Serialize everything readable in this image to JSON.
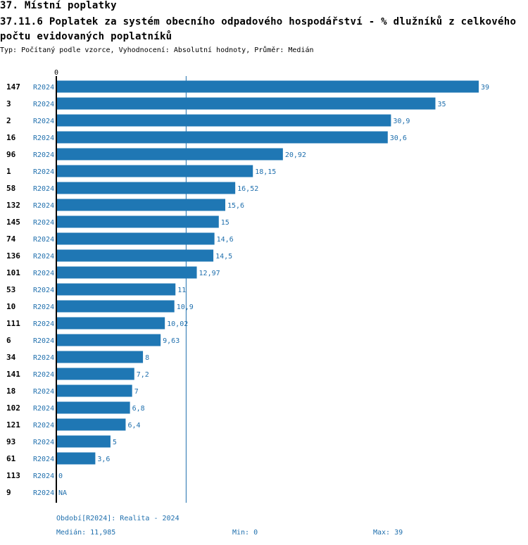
{
  "section_title": "37. Místní poplatky",
  "chart_title": "37.11.6 Poplatek za systém obecního odpadového hospodářství  - % dlužníků z celkového počtu evidovaných poplatníků",
  "subtitle": "Typ: Počítaný podle vzorce, Vyhodnocení: Absolutní hodnoty, Průměr: Medián",
  "colors": {
    "bar": "#1f77b4",
    "label": "#1f6fad",
    "median_line": "#1f6fad",
    "axis": "#000000"
  },
  "chart_data": {
    "type": "bar",
    "orientation": "horizontal",
    "x_axis_start_label": "0",
    "xlim": [
      0,
      39
    ],
    "grid": false,
    "rows": [
      {
        "id": "147",
        "period": "R2024",
        "value": 39,
        "label": "39"
      },
      {
        "id": "3",
        "period": "R2024",
        "value": 35,
        "label": "35"
      },
      {
        "id": "2",
        "period": "R2024",
        "value": 30.9,
        "label": "30,9"
      },
      {
        "id": "16",
        "period": "R2024",
        "value": 30.6,
        "label": "30,6"
      },
      {
        "id": "96",
        "period": "R2024",
        "value": 20.92,
        "label": "20,92"
      },
      {
        "id": "1",
        "period": "R2024",
        "value": 18.15,
        "label": "18,15"
      },
      {
        "id": "58",
        "period": "R2024",
        "value": 16.52,
        "label": "16,52"
      },
      {
        "id": "132",
        "period": "R2024",
        "value": 15.6,
        "label": "15,6"
      },
      {
        "id": "145",
        "period": "R2024",
        "value": 15,
        "label": "15"
      },
      {
        "id": "74",
        "period": "R2024",
        "value": 14.6,
        "label": "14,6"
      },
      {
        "id": "136",
        "period": "R2024",
        "value": 14.5,
        "label": "14,5"
      },
      {
        "id": "101",
        "period": "R2024",
        "value": 12.97,
        "label": "12,97"
      },
      {
        "id": "53",
        "period": "R2024",
        "value": 11,
        "label": "11"
      },
      {
        "id": "10",
        "period": "R2024",
        "value": 10.9,
        "label": "10,9"
      },
      {
        "id": "111",
        "period": "R2024",
        "value": 10.02,
        "label": "10,02"
      },
      {
        "id": "6",
        "period": "R2024",
        "value": 9.63,
        "label": "9,63"
      },
      {
        "id": "34",
        "period": "R2024",
        "value": 8,
        "label": "8"
      },
      {
        "id": "141",
        "period": "R2024",
        "value": 7.2,
        "label": "7,2"
      },
      {
        "id": "18",
        "period": "R2024",
        "value": 7,
        "label": "7"
      },
      {
        "id": "102",
        "period": "R2024",
        "value": 6.8,
        "label": "6,8"
      },
      {
        "id": "121",
        "period": "R2024",
        "value": 6.4,
        "label": "6,4"
      },
      {
        "id": "93",
        "period": "R2024",
        "value": 5,
        "label": "5"
      },
      {
        "id": "61",
        "period": "R2024",
        "value": 3.6,
        "label": "3,6"
      },
      {
        "id": "113",
        "period": "R2024",
        "value": 0,
        "label": "0"
      },
      {
        "id": "9",
        "period": "R2024",
        "value": null,
        "label": "NA"
      }
    ],
    "median": 11.985
  },
  "footer": {
    "period_note": "Období[R2024]: Realita - 2024",
    "median_text": "Medián: 11,985",
    "min_text": "Min: 0",
    "max_text": "Max: 39"
  }
}
